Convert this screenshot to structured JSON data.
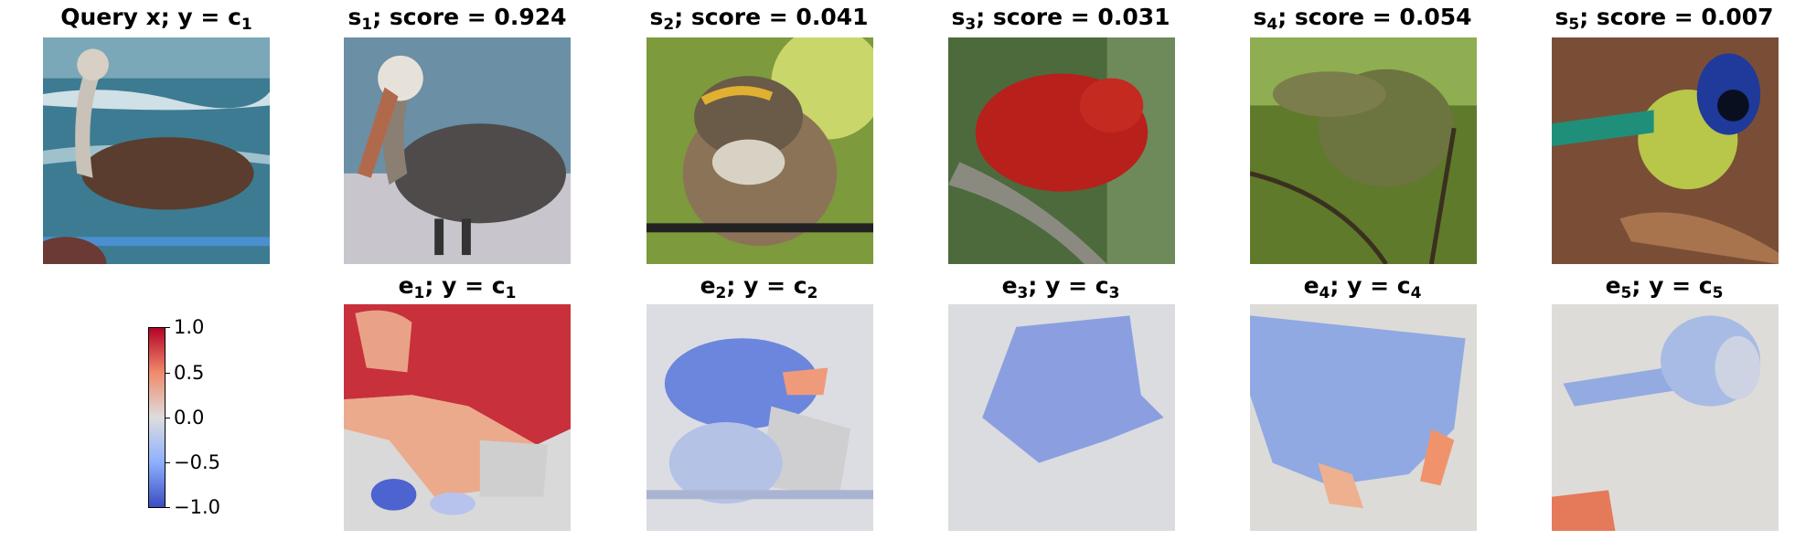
{
  "row1": [
    {
      "label": "Query x; y = c",
      "sub": "1",
      "desc": "query-pelican"
    },
    {
      "label": "; score = 0.924",
      "pre": "s",
      "sub": "1",
      "desc": "pelican"
    },
    {
      "label": "; score = 0.041",
      "pre": "s",
      "sub": "2",
      "desc": "sparrow"
    },
    {
      "label": "; score = 0.031",
      "pre": "s",
      "sub": "3",
      "desc": "red-tanager"
    },
    {
      "label": "; score = 0.054",
      "pre": "s",
      "sub": "4",
      "desc": "green-warbler"
    },
    {
      "label": "; score = 0.007",
      "pre": "s",
      "sub": "5",
      "desc": "green-jay"
    }
  ],
  "row2": [
    {
      "pre": "e",
      "sub": "1",
      "mid": "; y = c",
      "sub2": "1"
    },
    {
      "pre": "e",
      "sub": "2",
      "mid": "; y = c",
      "sub2": "2"
    },
    {
      "pre": "e",
      "sub": "3",
      "mid": "; y = c",
      "sub2": "3"
    },
    {
      "pre": "e",
      "sub": "4",
      "mid": "; y = c",
      "sub2": "4"
    },
    {
      "pre": "e",
      "sub": "5",
      "mid": "; y = c",
      "sub2": "5"
    }
  ],
  "colorbar": {
    "ticks": [
      "1.0",
      "0.5",
      "0.0",
      "−0.5",
      "−1.0"
    ],
    "colormap": [
      "#b40426",
      "#f08a6c",
      "#dddddd",
      "#8db0fe",
      "#3b4cc0"
    ]
  }
}
